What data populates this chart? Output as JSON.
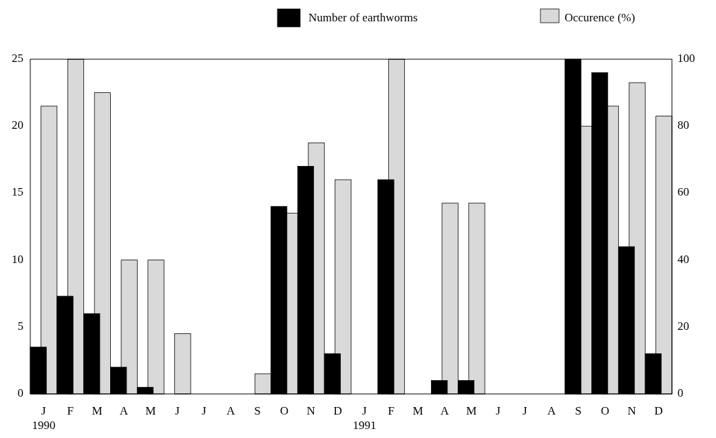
{
  "chart_data": {
    "type": "bar",
    "categories": [
      "J\n1990",
      "F",
      "M",
      "A",
      "M",
      "J",
      "J",
      "A",
      "S",
      "O",
      "N",
      "D",
      "J\n1991",
      "F",
      "M",
      "A",
      "M",
      "J",
      "J",
      "A",
      "S",
      "O",
      "N",
      "D"
    ],
    "series": [
      {
        "name": "Number of earthworms",
        "color": "#000000",
        "values": [
          3.5,
          7.3,
          6,
          2,
          0.5,
          0,
          0,
          0,
          0,
          14,
          17,
          3,
          0,
          16,
          0,
          1,
          1,
          0,
          0,
          0,
          25,
          24,
          11,
          3
        ]
      },
      {
        "name": "Occurence (%)",
        "color": "#d9d9d9",
        "axis": "y2",
        "values": [
          86,
          100,
          90,
          40,
          40,
          18,
          0,
          0,
          6,
          54,
          75,
          64,
          0,
          100,
          0,
          57,
          57,
          0,
          0,
          0,
          80,
          86,
          93,
          83
        ]
      }
    ],
    "ylim": [
      0,
      25
    ],
    "yticks": [
      0,
      5,
      10,
      15,
      20,
      25
    ],
    "y2lim": [
      0,
      100
    ],
    "y2ticks": [
      0,
      20,
      40,
      60,
      80,
      100
    ],
    "grid": false,
    "legend": "top"
  }
}
